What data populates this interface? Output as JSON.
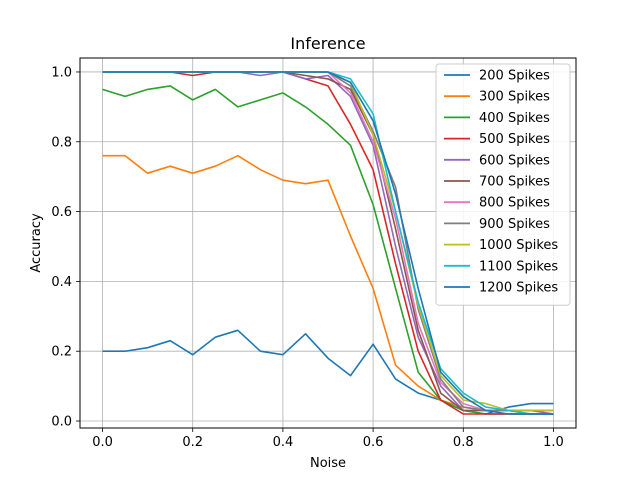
{
  "chart_data": {
    "type": "line",
    "title": "Inference",
    "xlabel": "Noise",
    "ylabel": "Accuracy",
    "xlim": [
      -0.05,
      1.05
    ],
    "ylim": [
      -0.02,
      1.04
    ],
    "grid": true,
    "legend_position": "top-right",
    "x": [
      0.0,
      0.05,
      0.1,
      0.15,
      0.2,
      0.25,
      0.3,
      0.35,
      0.4,
      0.45,
      0.5,
      0.55,
      0.6,
      0.65,
      0.7,
      0.75,
      0.8,
      0.85,
      0.9,
      0.95,
      1.0
    ],
    "x_ticks": [
      "0.0",
      "0.2",
      "0.4",
      "0.6",
      "0.8",
      "1.0"
    ],
    "x_tick_values": [
      0.0,
      0.2,
      0.4,
      0.6,
      0.8,
      1.0
    ],
    "y_ticks": [
      "0.0",
      "0.2",
      "0.4",
      "0.6",
      "0.8",
      "1.0"
    ],
    "y_tick_values": [
      0.0,
      0.2,
      0.4,
      0.6,
      0.8,
      1.0
    ],
    "series": [
      {
        "name": "200 Spikes",
        "color": "#1f77b4",
        "values": [
          0.2,
          0.2,
          0.21,
          0.23,
          0.19,
          0.24,
          0.26,
          0.2,
          0.19,
          0.25,
          0.18,
          0.13,
          0.22,
          0.12,
          0.08,
          0.06,
          0.03,
          0.02,
          0.04,
          0.05,
          0.05
        ]
      },
      {
        "name": "300 Spikes",
        "color": "#ff7f0e",
        "values": [
          0.76,
          0.76,
          0.71,
          0.73,
          0.71,
          0.73,
          0.76,
          0.72,
          0.69,
          0.68,
          0.69,
          0.53,
          0.38,
          0.16,
          0.1,
          0.06,
          0.04,
          0.03,
          0.03,
          0.03,
          0.02
        ]
      },
      {
        "name": "400 Spikes",
        "color": "#2ca02c",
        "values": [
          0.95,
          0.93,
          0.95,
          0.96,
          0.92,
          0.95,
          0.9,
          0.92,
          0.94,
          0.9,
          0.85,
          0.79,
          0.62,
          0.38,
          0.14,
          0.06,
          0.03,
          0.02,
          0.02,
          0.02,
          0.02
        ]
      },
      {
        "name": "500 Spikes",
        "color": "#d62728",
        "values": [
          1.0,
          1.0,
          1.0,
          1.0,
          0.99,
          1.0,
          1.0,
          1.0,
          1.0,
          0.98,
          0.96,
          0.85,
          0.72,
          0.45,
          0.2,
          0.06,
          0.02,
          0.02,
          0.02,
          0.02,
          0.02
        ]
      },
      {
        "name": "600 Spikes",
        "color": "#9467bd",
        "values": [
          1.0,
          1.0,
          1.0,
          1.0,
          1.0,
          1.0,
          1.0,
          0.99,
          1.0,
          0.98,
          0.99,
          0.93,
          0.79,
          0.5,
          0.24,
          0.1,
          0.03,
          0.03,
          0.03,
          0.03,
          0.02
        ]
      },
      {
        "name": "700 Spikes",
        "color": "#8c564b",
        "values": [
          1.0,
          1.0,
          1.0,
          1.0,
          1.0,
          1.0,
          1.0,
          1.0,
          1.0,
          0.99,
          0.98,
          0.95,
          0.82,
          0.55,
          0.26,
          0.08,
          0.03,
          0.03,
          0.03,
          0.02,
          0.02
        ]
      },
      {
        "name": "800 Spikes",
        "color": "#e377c2",
        "values": [
          1.0,
          1.0,
          1.0,
          1.0,
          1.0,
          1.0,
          1.0,
          1.0,
          1.0,
          1.0,
          1.0,
          0.94,
          0.8,
          0.58,
          0.28,
          0.11,
          0.05,
          0.03,
          0.03,
          0.03,
          0.03
        ]
      },
      {
        "name": "900 Spikes",
        "color": "#7f7f7f",
        "values": [
          1.0,
          1.0,
          1.0,
          1.0,
          1.0,
          1.0,
          1.0,
          1.0,
          1.0,
          1.0,
          1.0,
          0.96,
          0.83,
          0.67,
          0.32,
          0.12,
          0.04,
          0.03,
          0.03,
          0.03,
          0.03
        ]
      },
      {
        "name": "1000 Spikes",
        "color": "#bcbd22",
        "values": [
          1.0,
          1.0,
          1.0,
          1.0,
          1.0,
          1.0,
          1.0,
          1.0,
          1.0,
          1.0,
          1.0,
          0.97,
          0.82,
          0.6,
          0.33,
          0.13,
          0.06,
          0.05,
          0.03,
          0.03,
          0.03
        ]
      },
      {
        "name": "1100 Spikes",
        "color": "#17becf",
        "values": [
          1.0,
          1.0,
          1.0,
          1.0,
          1.0,
          1.0,
          1.0,
          1.0,
          1.0,
          1.0,
          1.0,
          0.98,
          0.88,
          0.6,
          0.34,
          0.15,
          0.08,
          0.04,
          0.03,
          0.02,
          0.02
        ]
      },
      {
        "name": "1200 Spikes",
        "color": "#1f77b4",
        "values": [
          1.0,
          1.0,
          1.0,
          1.0,
          1.0,
          1.0,
          1.0,
          1.0,
          1.0,
          1.0,
          1.0,
          0.97,
          0.86,
          0.65,
          0.38,
          0.14,
          0.07,
          0.03,
          0.02,
          0.02,
          0.02
        ]
      }
    ]
  }
}
